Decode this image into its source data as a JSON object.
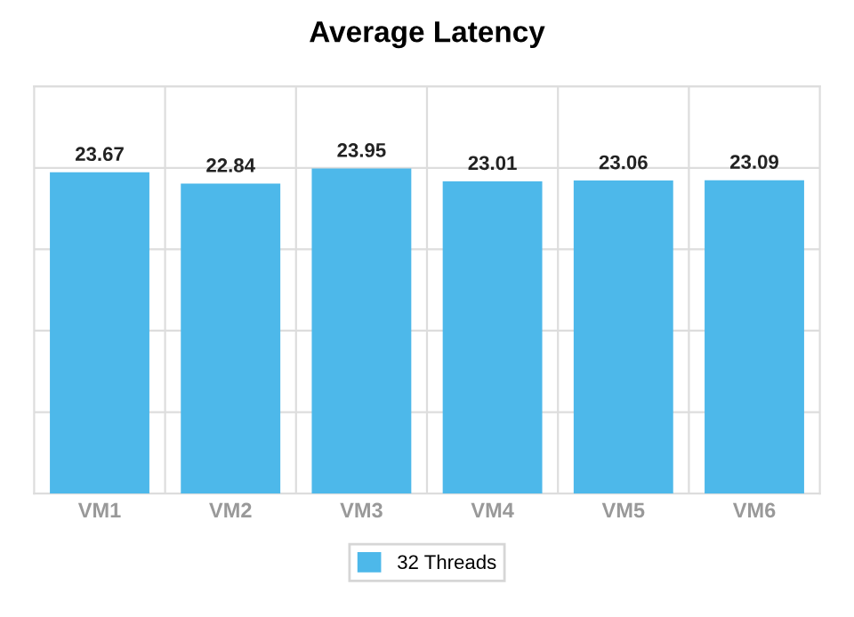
{
  "chart_data": {
    "type": "bar",
    "title": "Average Latency",
    "categories": [
      "VM1",
      "VM2",
      "VM3",
      "VM4",
      "VM5",
      "VM6"
    ],
    "series": [
      {
        "name": "32 Threads",
        "color": "#4db8ea",
        "values": [
          23.67,
          22.84,
          23.95,
          23.01,
          23.06,
          23.09
        ]
      }
    ],
    "ylim": [
      0,
      30
    ],
    "yticks": [
      {
        "value": 0,
        "label": null
      },
      {
        "value": 6,
        "label": null
      },
      {
        "value": 12,
        "label": null
      },
      {
        "value": 18,
        "label": null
      },
      {
        "value": 24,
        "label": null
      },
      {
        "value": 30,
        "label": null
      }
    ],
    "tick_labels": "x",
    "grid": true,
    "legend": "bottom",
    "data_labels": true
  }
}
